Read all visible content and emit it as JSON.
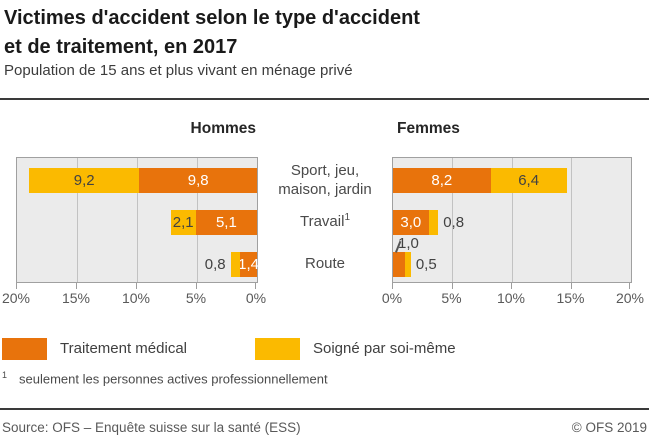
{
  "header": {
    "title_line1": "Victimes d'accident selon le type d'accident",
    "title_line2": "et de traitement, en 2017",
    "subtitle": "Population de 15 ans et plus vivant en ménage privé"
  },
  "chart_data": {
    "type": "bar",
    "variant": "horizontal-stacked-pyramid",
    "unit": "%",
    "xlim": [
      0,
      20
    ],
    "ticks": [
      0,
      5,
      10,
      15,
      20
    ],
    "tick_label_format": "percent",
    "grid": "vertical",
    "plot_bg": "#ebebeb",
    "series": [
      {
        "name": "Traitement médical",
        "color": "#e8730c",
        "label_color": "#ffffff"
      },
      {
        "name": "Soigné par soi-même",
        "color": "#fbba00",
        "label_color": "#424242"
      }
    ],
    "categories": [
      {
        "label_lines": [
          "Sport, jeu,",
          "maison, jardin"
        ],
        "sup": ""
      },
      {
        "label_lines": [
          "Travail"
        ],
        "sup": "1"
      },
      {
        "label_lines": [
          "Route"
        ],
        "sup": ""
      }
    ],
    "panels": [
      {
        "id": "hommes",
        "title": "Hommes",
        "direction": "rtl",
        "rows": [
          {
            "category": "Sport, jeu, maison, jardin",
            "segments": [
              {
                "series": "Traitement médical",
                "value": 9.8,
                "label": "9,8",
                "label_pos": "inside"
              },
              {
                "series": "Soigné par soi-même",
                "value": 9.2,
                "label": "9,2",
                "label_pos": "inside"
              }
            ]
          },
          {
            "category": "Travail",
            "segments": [
              {
                "series": "Traitement médical",
                "value": 5.1,
                "label": "5,1",
                "label_pos": "inside"
              },
              {
                "series": "Soigné par soi-même",
                "value": 2.1,
                "label": "2,1",
                "label_pos": "inside"
              }
            ]
          },
          {
            "category": "Route",
            "segments": [
              {
                "series": "Traitement médical",
                "value": 1.4,
                "label": "1,4",
                "label_pos": "inside"
              },
              {
                "series": "Soigné par soi-même",
                "value": 0.8,
                "label": "0,8",
                "label_pos": "outside"
              }
            ]
          }
        ]
      },
      {
        "id": "femmes",
        "title": "Femmes",
        "direction": "ltr",
        "rows": [
          {
            "category": "Sport, jeu, maison, jardin",
            "segments": [
              {
                "series": "Traitement médical",
                "value": 8.2,
                "label": "8,2",
                "label_pos": "inside"
              },
              {
                "series": "Soigné par soi-même",
                "value": 6.4,
                "label": "6,4",
                "label_pos": "inside"
              }
            ]
          },
          {
            "category": "Travail",
            "segments": [
              {
                "series": "Traitement médical",
                "value": 3.0,
                "label": "3,0",
                "label_pos": "inside"
              },
              {
                "series": "Soigné par soi-même",
                "value": 0.8,
                "label": "0,8",
                "label_pos": "outside"
              }
            ]
          },
          {
            "category": "Route",
            "segments": [
              {
                "series": "Traitement médical",
                "value": 1.0,
                "label": "1,0",
                "label_pos": "callout"
              },
              {
                "series": "Soigné par soi-même",
                "value": 0.5,
                "label": "0,5",
                "label_pos": "outside"
              }
            ]
          }
        ]
      }
    ]
  },
  "footnote": {
    "marker": "1",
    "text": "seulement les personnes actives professionnellement"
  },
  "footer": {
    "source": "Source: OFS – Enquête suisse sur la santé (ESS)",
    "copyright": "© OFS 2019"
  }
}
